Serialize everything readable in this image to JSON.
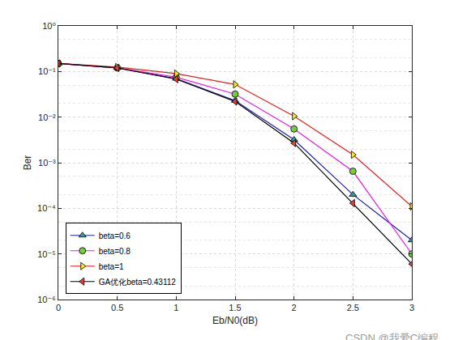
{
  "chart_data": {
    "type": "line",
    "x_label": "Eb/N0(dB)",
    "y_label": "Ber",
    "log": "y",
    "grid": true,
    "legend": "lower left",
    "xlim": [
      0,
      3
    ],
    "xticks": [
      0,
      0.5,
      1,
      1.5,
      2,
      2.5,
      3
    ],
    "ylim": [
      1e-06,
      1
    ],
    "yticks": [
      {
        "value": 1e-06,
        "label": "10⁻⁶"
      },
      {
        "value": 1e-05,
        "label": "10⁻⁵"
      },
      {
        "value": 0.0001,
        "label": "10⁻⁴"
      },
      {
        "value": 0.001,
        "label": "10⁻³"
      },
      {
        "value": 0.01,
        "label": "10⁻²"
      },
      {
        "value": 0.1,
        "label": "10⁻¹"
      },
      {
        "value": 1,
        "label": "10⁰"
      }
    ],
    "x": [
      0,
      0.5,
      1,
      1.5,
      2,
      2.5,
      3
    ],
    "series": [
      {
        "name": "beta=0.6",
        "color": "#1f1fa8",
        "marker": "triangle-up",
        "line_style": "solid",
        "values": [
          0.15,
          0.12,
          0.07,
          0.023,
          0.0032,
          0.0002,
          2e-05
        ]
      },
      {
        "name": "beta=0.8",
        "color": "#e020e0",
        "marker": "circle",
        "line_style": "solid",
        "values": [
          0.15,
          0.12,
          0.075,
          0.032,
          0.0055,
          0.00065,
          1e-05
        ]
      },
      {
        "name": "beta=1",
        "color": "#e02020",
        "marker": "triangle-right",
        "line_style": "solid",
        "values": [
          0.15,
          0.125,
          0.09,
          0.052,
          0.0105,
          0.0015,
          0.00011
        ]
      },
      {
        "name": "GA优化beta=0.43112",
        "color": "#000000",
        "marker": "triangle-left",
        "line_style": "solid",
        "values": [
          0.15,
          0.12,
          0.068,
          0.022,
          0.0027,
          0.00013,
          6e-06
        ]
      }
    ],
    "annotations": [
      "CSDN @我爱C编程"
    ]
  }
}
